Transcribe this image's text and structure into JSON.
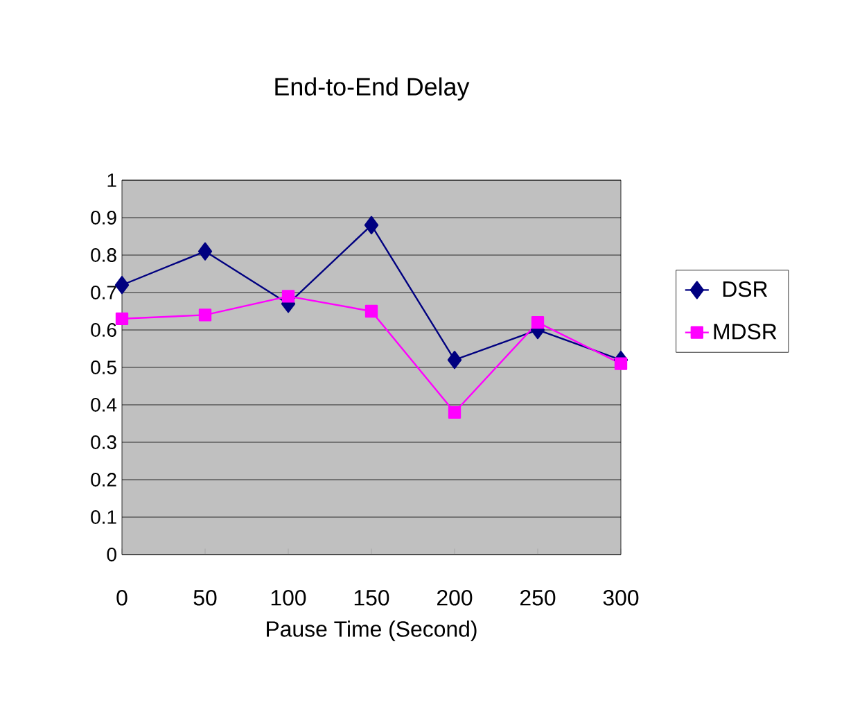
{
  "chart_data": {
    "type": "line",
    "title": "End-to-End Delay",
    "xlabel": "Pause Time (Second)",
    "x": [
      0,
      50,
      100,
      150,
      200,
      250,
      300
    ],
    "xlim": [
      0,
      300
    ],
    "xticks": [
      0,
      50,
      100,
      150,
      200,
      250,
      300
    ],
    "ylim": [
      0,
      1
    ],
    "yticks": [
      0,
      0.1,
      0.2,
      0.3,
      0.4,
      0.5,
      0.6,
      0.7,
      0.8,
      0.9,
      1
    ],
    "grid": "y",
    "legend": "right",
    "series": [
      {
        "name": "DSR",
        "color": "#000080",
        "marker": "diamond",
        "values": [
          0.72,
          0.81,
          0.67,
          0.88,
          0.52,
          0.6,
          0.52
        ]
      },
      {
        "name": "MDSR",
        "color": "#ff00ff",
        "marker": "square",
        "values": [
          0.63,
          0.64,
          0.69,
          0.65,
          0.38,
          0.62,
          0.51
        ]
      }
    ]
  }
}
